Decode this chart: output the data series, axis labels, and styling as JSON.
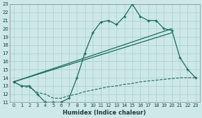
{
  "xlabel": "Humidex (Indice chaleur)",
  "bg_color": "#cce8e8",
  "line_color": "#1a6b5a",
  "grid_color": "#aacccc",
  "xlim": [
    -0.5,
    23.5
  ],
  "ylim": [
    11,
    23
  ],
  "xticks": [
    0,
    1,
    2,
    3,
    4,
    5,
    6,
    7,
    8,
    9,
    10,
    11,
    12,
    13,
    14,
    15,
    16,
    17,
    18,
    19,
    20,
    21,
    22,
    23
  ],
  "yticks": [
    11,
    12,
    13,
    14,
    15,
    16,
    17,
    18,
    19,
    20,
    21,
    22,
    23
  ],
  "line1_x": [
    0,
    1,
    2,
    3,
    4,
    5,
    6,
    7,
    8,
    9,
    10,
    11,
    12,
    13,
    14,
    15,
    16,
    17,
    18,
    19,
    20,
    21,
    22,
    23
  ],
  "line1_y": [
    13.5,
    13.0,
    13.0,
    12.0,
    11.0,
    11.0,
    11.0,
    11.5,
    14.0,
    17.0,
    19.5,
    20.8,
    21.0,
    20.5,
    21.5,
    23.0,
    21.5,
    21.0,
    21.0,
    20.0,
    19.8,
    16.5,
    15.0,
    14.0
  ],
  "line2_x": [
    0,
    20
  ],
  "line2_y": [
    13.5,
    20.0
  ],
  "line3_x": [
    0,
    20
  ],
  "line3_y": [
    13.5,
    19.5
  ],
  "dashed_x": [
    0,
    1,
    2,
    3,
    4,
    5,
    6,
    7,
    8,
    9,
    10,
    11,
    12,
    13,
    14,
    15,
    16,
    17,
    18,
    19,
    20,
    21,
    22,
    23
  ],
  "dashed_y": [
    13.5,
    13.0,
    12.8,
    12.2,
    12.0,
    11.5,
    11.5,
    11.8,
    12.0,
    12.3,
    12.5,
    12.7,
    12.9,
    13.0,
    13.2,
    13.3,
    13.5,
    13.6,
    13.7,
    13.8,
    13.9,
    14.0,
    14.0,
    14.0
  ]
}
